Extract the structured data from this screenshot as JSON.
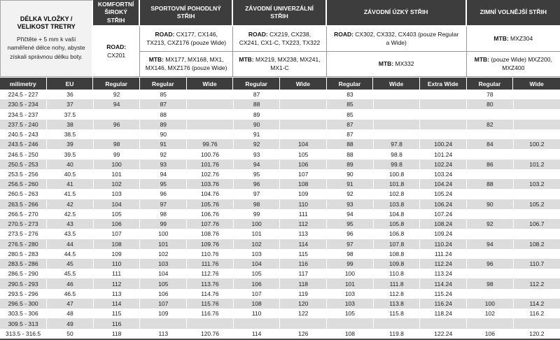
{
  "info": {
    "title": "DÉLKA VLOŽKY / VELIKOST TRETRY",
    "subtitle": "Přičtěte + 5 mm k vaší naměřené délce nohy, abyste získali správnou délku boty."
  },
  "groups": [
    {
      "title": "KOMFORTNÍ ŠIROKÝ STŘIH",
      "line1_label": "ROAD:",
      "line1_text": "CX201"
    },
    {
      "title": "SPORTOVNÍ POHODLNÝ STŘIH",
      "line1_label": "ROAD:",
      "line1_text": "CX177, CX146, TX213, CXZ176 (pouze Wide)",
      "line2_label": "MTB:",
      "line2_text": "MX177, MX168, MX1, MX146, MXZ176 (pouze Wide)"
    },
    {
      "title": "ZÁVODNÍ UNIVERZÁLNÍ STŘIH",
      "line1_label": "ROAD:",
      "line1_text": "CX219, CX238, CX241, CX1-C, TX223, TX322",
      "line2_label": "MTB:",
      "line2_text": "MX219, MX238, MX241, MX1-C"
    },
    {
      "title": "ZÁVODNÍ ÚZKÝ STŘIH",
      "line1_label": "ROAD:",
      "line1_text": "CX302, CX332, CX403 (pouze Regular a Wide)",
      "line2_label": "MTB:",
      "line2_text": "MX332"
    },
    {
      "title": "ZIMNÍ VOLNĚJŠÍ STŘIH",
      "line1_label": "MTB:",
      "line1_text": "MXZ304",
      "line2_label": "MTB:",
      "line2_text": "(pouze Wide) MXZ200, MXZ400"
    }
  ],
  "columns": [
    "milimetry",
    "EU",
    "Regular",
    "Regular",
    "Wide",
    "Regular",
    "Wide",
    "Regular",
    "Wide",
    "Extra Wide",
    "Regular",
    "Wide"
  ],
  "rows": [
    [
      "224.5 - 227",
      "36",
      "92",
      "85",
      "",
      "87",
      "",
      "83",
      "",
      "",
      "78",
      ""
    ],
    [
      "230.5 - 234",
      "37",
      "94",
      "87",
      "",
      "88",
      "",
      "85",
      "",
      "",
      "80",
      ""
    ],
    [
      "234.5 - 237",
      "37.5",
      "",
      "88",
      "",
      "89",
      "",
      "85",
      "",
      "",
      "",
      ""
    ],
    [
      "237.5 - 240",
      "38",
      "96",
      "89",
      "",
      "90",
      "",
      "87",
      "",
      "",
      "82",
      ""
    ],
    [
      "240.5 - 243",
      "38.5",
      "",
      "90",
      "",
      "91",
      "",
      "87",
      "",
      "",
      "",
      ""
    ],
    [
      "243.5 - 246",
      "39",
      "98",
      "91",
      "99.76",
      "92",
      "104",
      "88",
      "97.8",
      "100.24",
      "84",
      "100.2"
    ],
    [
      "246.5 - 250",
      "39.5",
      "99",
      "92",
      "100.76",
      "93",
      "105",
      "88",
      "98.8",
      "101.24",
      "",
      ""
    ],
    [
      "250.5 - 253",
      "40",
      "100",
      "93",
      "101.76",
      "94",
      "106",
      "89",
      "99.8",
      "102.24",
      "86",
      "101.2"
    ],
    [
      "253.5 - 256",
      "40.5",
      "101",
      "94",
      "102.76",
      "95",
      "107",
      "90",
      "100.8",
      "103.24",
      "",
      ""
    ],
    [
      "256.5 - 260",
      "41",
      "102",
      "95",
      "103.76",
      "96",
      "108",
      "91",
      "101.8",
      "104.24",
      "88",
      "103.2"
    ],
    [
      "260.5 - 263",
      "41.5",
      "103",
      "96",
      "104.76",
      "97",
      "109",
      "92",
      "102.8",
      "105.24",
      "",
      ""
    ],
    [
      "263.5 - 266",
      "42",
      "104",
      "97",
      "105.76",
      "98",
      "110",
      "93",
      "103.8",
      "106.24",
      "90",
      "105.2"
    ],
    [
      "266.5 - 270",
      "42.5",
      "105",
      "98",
      "106.76",
      "99",
      "111",
      "94",
      "104.8",
      "107.24",
      "",
      ""
    ],
    [
      "270.5 - 273",
      "43",
      "106",
      "99",
      "107.76",
      "100",
      "112",
      "95",
      "105.8",
      "108.24",
      "92",
      "106.7"
    ],
    [
      "273.5 - 276",
      "43.5",
      "107",
      "100",
      "108.76",
      "101",
      "113",
      "96",
      "106.8",
      "109.24",
      "",
      ""
    ],
    [
      "276.5 - 280",
      "44",
      "108",
      "101",
      "109.76",
      "102",
      "114",
      "97",
      "107.8",
      "110.24",
      "94",
      "108.2"
    ],
    [
      "280.5 - 283",
      "44.5",
      "109",
      "102",
      "110.76",
      "103",
      "115",
      "98",
      "108.8",
      "111.24",
      "",
      ""
    ],
    [
      "283.5 - 286",
      "45",
      "110",
      "103",
      "111.76",
      "104",
      "116",
      "99",
      "109.8",
      "112.24",
      "96",
      "110.7"
    ],
    [
      "286.5 - 290",
      "45.5",
      "111",
      "104",
      "112.76",
      "105",
      "117",
      "100",
      "110.8",
      "113.24",
      "",
      ""
    ],
    [
      "290.5 - 293",
      "46",
      "112",
      "105",
      "113.76",
      "106",
      "118",
      "101",
      "111.8",
      "114.24",
      "98",
      "112.2"
    ],
    [
      "293.5 - 296",
      "46.5",
      "113",
      "106",
      "114.76",
      "107",
      "119",
      "103",
      "112.8",
      "115.24",
      "",
      ""
    ],
    [
      "296.5 - 300",
      "47",
      "114",
      "107",
      "115.76",
      "108",
      "120",
      "103",
      "113.8",
      "116.24",
      "100",
      "114.2"
    ],
    [
      "303.5 - 306",
      "48",
      "115",
      "109",
      "116.76",
      "110",
      "122",
      "105",
      "115.8",
      "118.24",
      "102",
      "116.2"
    ],
    [
      "309.5 - 313",
      "49",
      "116",
      "",
      "",
      "",
      "",
      "",
      "",
      "",
      "",
      ""
    ],
    [
      "313.5 - 316.5",
      "50",
      "118",
      "113",
      "120.76",
      "114",
      "126",
      "108",
      "119.8",
      "122.24",
      "106",
      "120.2"
    ]
  ]
}
